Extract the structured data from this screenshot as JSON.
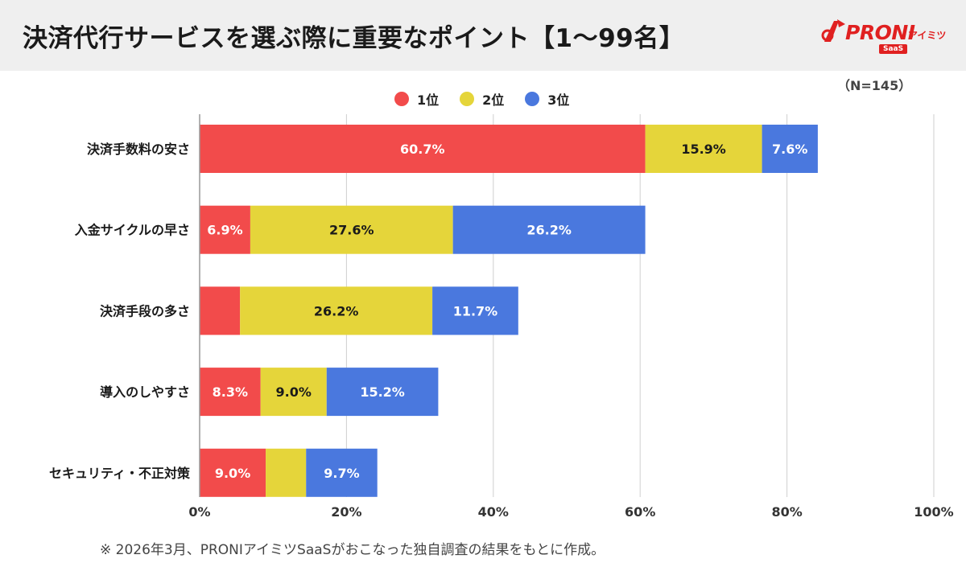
{
  "header": {
    "title": "決済代行サービスを選ぶ際に重要なポイント【1〜99名】",
    "logo": {
      "brand": "PRONI",
      "kana": "アイミツ",
      "sub": "SaaS"
    },
    "sample_size": "（N=145）"
  },
  "colors": {
    "rank1": "#f24b4b",
    "rank2": "#e5d53a",
    "rank3": "#4a78de",
    "grid": "#cfcfcf",
    "axis": "#999999"
  },
  "chart_data": {
    "type": "bar",
    "orientation": "horizontal",
    "stacked": true,
    "categories": [
      "決済手数料の安さ",
      "入金サイクルの早さ",
      "決済手段の多さ",
      "導入のしやすさ",
      "セキュリティ・不正対策"
    ],
    "series": [
      {
        "name": "1位",
        "values": [
          60.7,
          6.9,
          5.5,
          8.3,
          9.0
        ],
        "labels": [
          "60.7%",
          "6.9%",
          "",
          "8.3%",
          "9.0%"
        ]
      },
      {
        "name": "2位",
        "values": [
          15.9,
          27.6,
          26.2,
          9.0,
          5.5
        ],
        "labels": [
          "15.9%",
          "27.6%",
          "26.2%",
          "9.0%",
          ""
        ]
      },
      {
        "name": "3位",
        "values": [
          7.6,
          26.2,
          11.7,
          15.2,
          9.7
        ],
        "labels": [
          "7.6%",
          "26.2%",
          "11.7%",
          "15.2%",
          "9.7%"
        ]
      }
    ],
    "xlim": [
      0,
      100
    ],
    "xticks": [
      "0%",
      "20%",
      "40%",
      "60%",
      "80%",
      "100%"
    ],
    "grid": true,
    "legend": "top-center"
  },
  "footnote": "※  2026年3月、PRONIアイミツSaaSがおこなった独自調査の結果をもとに作成。"
}
